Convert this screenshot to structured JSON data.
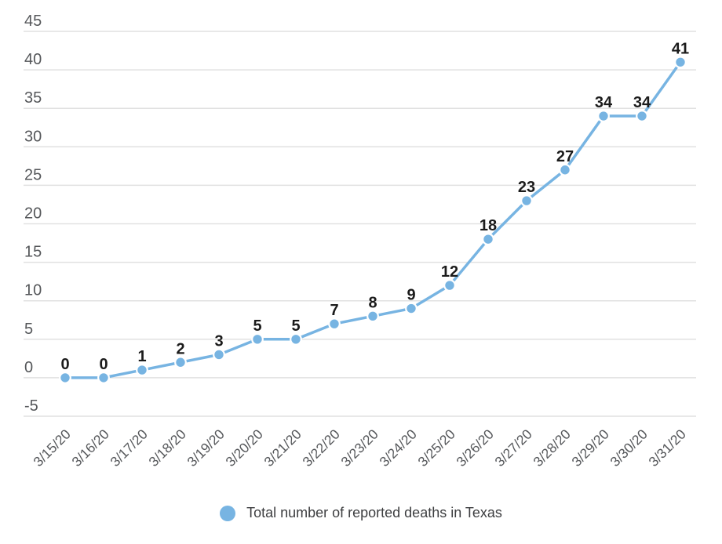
{
  "chart_data": {
    "type": "line",
    "title": "",
    "categories": [
      "3/15/20",
      "3/16/20",
      "3/17/20",
      "3/18/20",
      "3/19/20",
      "3/20/20",
      "3/21/20",
      "3/22/20",
      "3/23/20",
      "3/24/20",
      "3/25/20",
      "3/26/20",
      "3/27/20",
      "3/28/20",
      "3/29/20",
      "3/30/20",
      "3/31/20"
    ],
    "series": [
      {
        "name": "Total number of reported deaths in Texas",
        "values": [
          0,
          0,
          1,
          2,
          3,
          5,
          5,
          7,
          8,
          9,
          12,
          18,
          23,
          27,
          34,
          34,
          41
        ]
      }
    ],
    "ylim": [
      -5,
      45
    ],
    "yticks": [
      45,
      40,
      35,
      30,
      25,
      20,
      15,
      10,
      5,
      0,
      -5
    ],
    "grid": "horizontal",
    "point_labels_visible": true,
    "legend_position": "bottom"
  },
  "legend": {
    "label": "Total number of reported deaths in Texas"
  },
  "colors": {
    "series_blue": "#77B4E2",
    "gridline": "#E1E1E1",
    "axis_label": "#55575A",
    "point_label": "#1B1B1B",
    "legend_label": "#3D3E40",
    "background": "#FFFFFF"
  }
}
